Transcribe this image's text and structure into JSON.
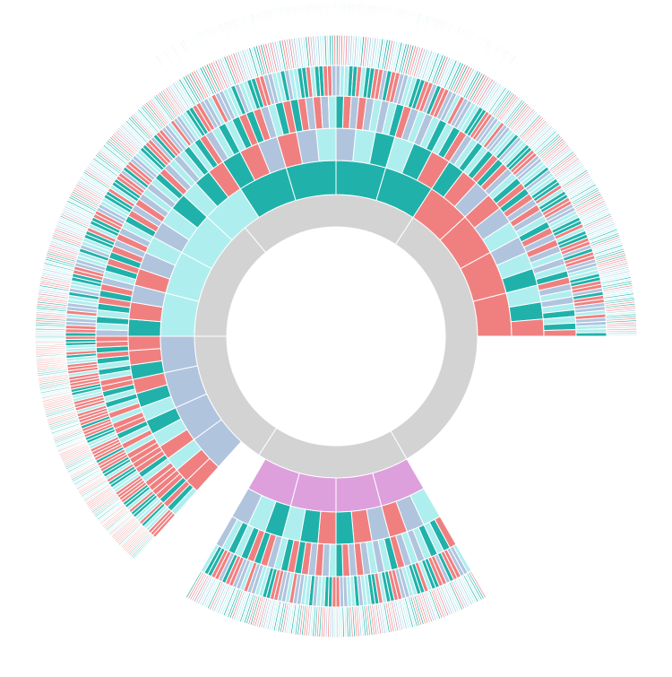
{
  "colors": {
    "ring": "#d3d3d3",
    "salmon": "#f08080",
    "teal": "#20b2aa",
    "light_cyan": "#afeeee",
    "steel": "#b0c4de",
    "orchid": "#dda0dd"
  },
  "sunburst": {
    "levels": 6,
    "sectors": [
      {
        "name": "top",
        "color": "teal",
        "cycle": [
          "steel",
          "light_cyan",
          "teal",
          "salmon"
        ]
      },
      {
        "name": "right",
        "color": "salmon",
        "cycle": [
          "steel",
          "light_cyan",
          "teal",
          "salmon"
        ]
      },
      {
        "name": "bottom",
        "color": "orchid",
        "cycle": [
          "salmon",
          "teal",
          "light_cyan",
          "steel"
        ]
      },
      {
        "name": "left",
        "color": "steel",
        "cycle": [
          "light_cyan",
          "teal",
          "salmon",
          "salmon"
        ]
      },
      {
        "name": "upper-left",
        "color": "light_cyan",
        "cycle": [
          "steel",
          "light_cyan",
          "teal",
          "salmon"
        ]
      }
    ]
  }
}
